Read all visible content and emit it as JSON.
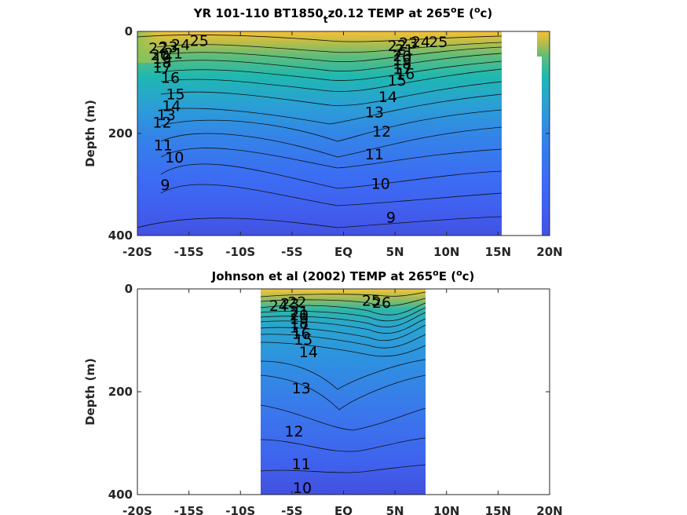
{
  "chart_data": [
    {
      "type": "heatmap",
      "title_main": "YR 101-110 BT1850",
      "title_sub": "t",
      "title_rest": "z0.12 TEMP at 265",
      "title_sup": "o",
      "title_unit_open": "E (",
      "title_unit_sup": "o",
      "title_unit_close": "c)",
      "xlabel": "",
      "ylabel": "Depth (m)",
      "xlim": [
        -20,
        20
      ],
      "ylim": [
        400,
        0
      ],
      "x_ticks": [
        -20,
        -15,
        -10,
        -5,
        0,
        5,
        10,
        15,
        20
      ],
      "x_tick_labels": [
        "-20S",
        "-15S",
        "-10S",
        "-5S",
        "EQ",
        "5N",
        "10N",
        "15N",
        "20N"
      ],
      "y_ticks": [
        0,
        200,
        400
      ],
      "y_tick_labels": [
        "0",
        "200",
        "400"
      ],
      "colormap": "parula",
      "data_x_range": [
        -20,
        15.3
      ],
      "mask_region": "white land/missing band 15.3N to 20N except column 18.3N-19.8N",
      "contour_labels": [
        {
          "text": "25",
          "x": -14,
          "depth": 18
        },
        {
          "text": "24",
          "x": -15.8,
          "depth": 25
        },
        {
          "text": "23",
          "x": -17,
          "depth": 30
        },
        {
          "text": "22",
          "x": -18,
          "depth": 32
        },
        {
          "text": "21",
          "x": -16.5,
          "depth": 42
        },
        {
          "text": "20",
          "x": -17.8,
          "depth": 45
        },
        {
          "text": "19",
          "x": -17.6,
          "depth": 52
        },
        {
          "text": "18",
          "x": -17.6,
          "depth": 60
        },
        {
          "text": "17",
          "x": -17.6,
          "depth": 70
        },
        {
          "text": "16",
          "x": -16.8,
          "depth": 90
        },
        {
          "text": "15",
          "x": -16.3,
          "depth": 122
        },
        {
          "text": "14",
          "x": -16.7,
          "depth": 145
        },
        {
          "text": "13",
          "x": -17.2,
          "depth": 163
        },
        {
          "text": "12",
          "x": -17.6,
          "depth": 178
        },
        {
          "text": "11",
          "x": -17.5,
          "depth": 222
        },
        {
          "text": "10",
          "x": -16.4,
          "depth": 246
        },
        {
          "text": "9",
          "x": -17.3,
          "depth": 300
        },
        {
          "text": "25",
          "x": 9.2,
          "depth": 20
        },
        {
          "text": "24",
          "x": 7.5,
          "depth": 20
        },
        {
          "text": "23",
          "x": 6.3,
          "depth": 22
        },
        {
          "text": "22",
          "x": 5.2,
          "depth": 28
        },
        {
          "text": "21",
          "x": 5.9,
          "depth": 35
        },
        {
          "text": "20",
          "x": 5.7,
          "depth": 48
        },
        {
          "text": "19",
          "x": 5.7,
          "depth": 55
        },
        {
          "text": "18",
          "x": 5.7,
          "depth": 62
        },
        {
          "text": "17",
          "x": 5.7,
          "depth": 72
        },
        {
          "text": "16",
          "x": 6.0,
          "depth": 82
        },
        {
          "text": "15",
          "x": 5.2,
          "depth": 95
        },
        {
          "text": "14",
          "x": 4.3,
          "depth": 128
        },
        {
          "text": "13",
          "x": 3.0,
          "depth": 158
        },
        {
          "text": "12",
          "x": 3.7,
          "depth": 195
        },
        {
          "text": "11",
          "x": 3.0,
          "depth": 240
        },
        {
          "text": "10",
          "x": 3.6,
          "depth": 298
        },
        {
          "text": "9",
          "x": 4.6,
          "depth": 364
        }
      ]
    },
    {
      "type": "heatmap",
      "title_main": "Johnson et al (2002) TEMP at 265",
      "title_sup": "o",
      "title_unit_open": "E (",
      "title_unit_sup": "o",
      "title_unit_close": "c)",
      "xlabel": "",
      "ylabel": "Depth (m)",
      "xlim": [
        -20,
        20
      ],
      "ylim": [
        400,
        0
      ],
      "x_ticks": [
        -20,
        -15,
        -10,
        -5,
        0,
        5,
        10,
        15,
        20
      ],
      "x_tick_labels": [
        "-20S",
        "-15S",
        "-10S",
        "-5S",
        "EQ",
        "5N",
        "10N",
        "15N",
        "20N"
      ],
      "y_ticks": [
        0,
        200,
        400
      ],
      "y_tick_labels": [
        "0",
        "200",
        "400"
      ],
      "colormap": "parula",
      "data_x_range": [
        -8,
        8
      ],
      "contour_labels": [
        {
          "text": "24",
          "x": -6.3,
          "depth": 32
        },
        {
          "text": "23",
          "x": -5.2,
          "depth": 28
        },
        {
          "text": "22",
          "x": -4.5,
          "depth": 25
        },
        {
          "text": "25",
          "x": 2.7,
          "depth": 22
        },
        {
          "text": "26",
          "x": 3.7,
          "depth": 26
        },
        {
          "text": "21",
          "x": -4.3,
          "depth": 44
        },
        {
          "text": "20",
          "x": -4.3,
          "depth": 50
        },
        {
          "text": "19",
          "x": -4.3,
          "depth": 57
        },
        {
          "text": "18",
          "x": -4.3,
          "depth": 66
        },
        {
          "text": "17",
          "x": -4.3,
          "depth": 74
        },
        {
          "text": "16",
          "x": -4.1,
          "depth": 86
        },
        {
          "text": "15",
          "x": -3.9,
          "depth": 98
        },
        {
          "text": "14",
          "x": -3.4,
          "depth": 122
        },
        {
          "text": "13",
          "x": -4.1,
          "depth": 192
        },
        {
          "text": "12",
          "x": -4.8,
          "depth": 276
        },
        {
          "text": "11",
          "x": -4.1,
          "depth": 340
        },
        {
          "text": "10",
          "x": -4.0,
          "depth": 386
        }
      ]
    }
  ]
}
